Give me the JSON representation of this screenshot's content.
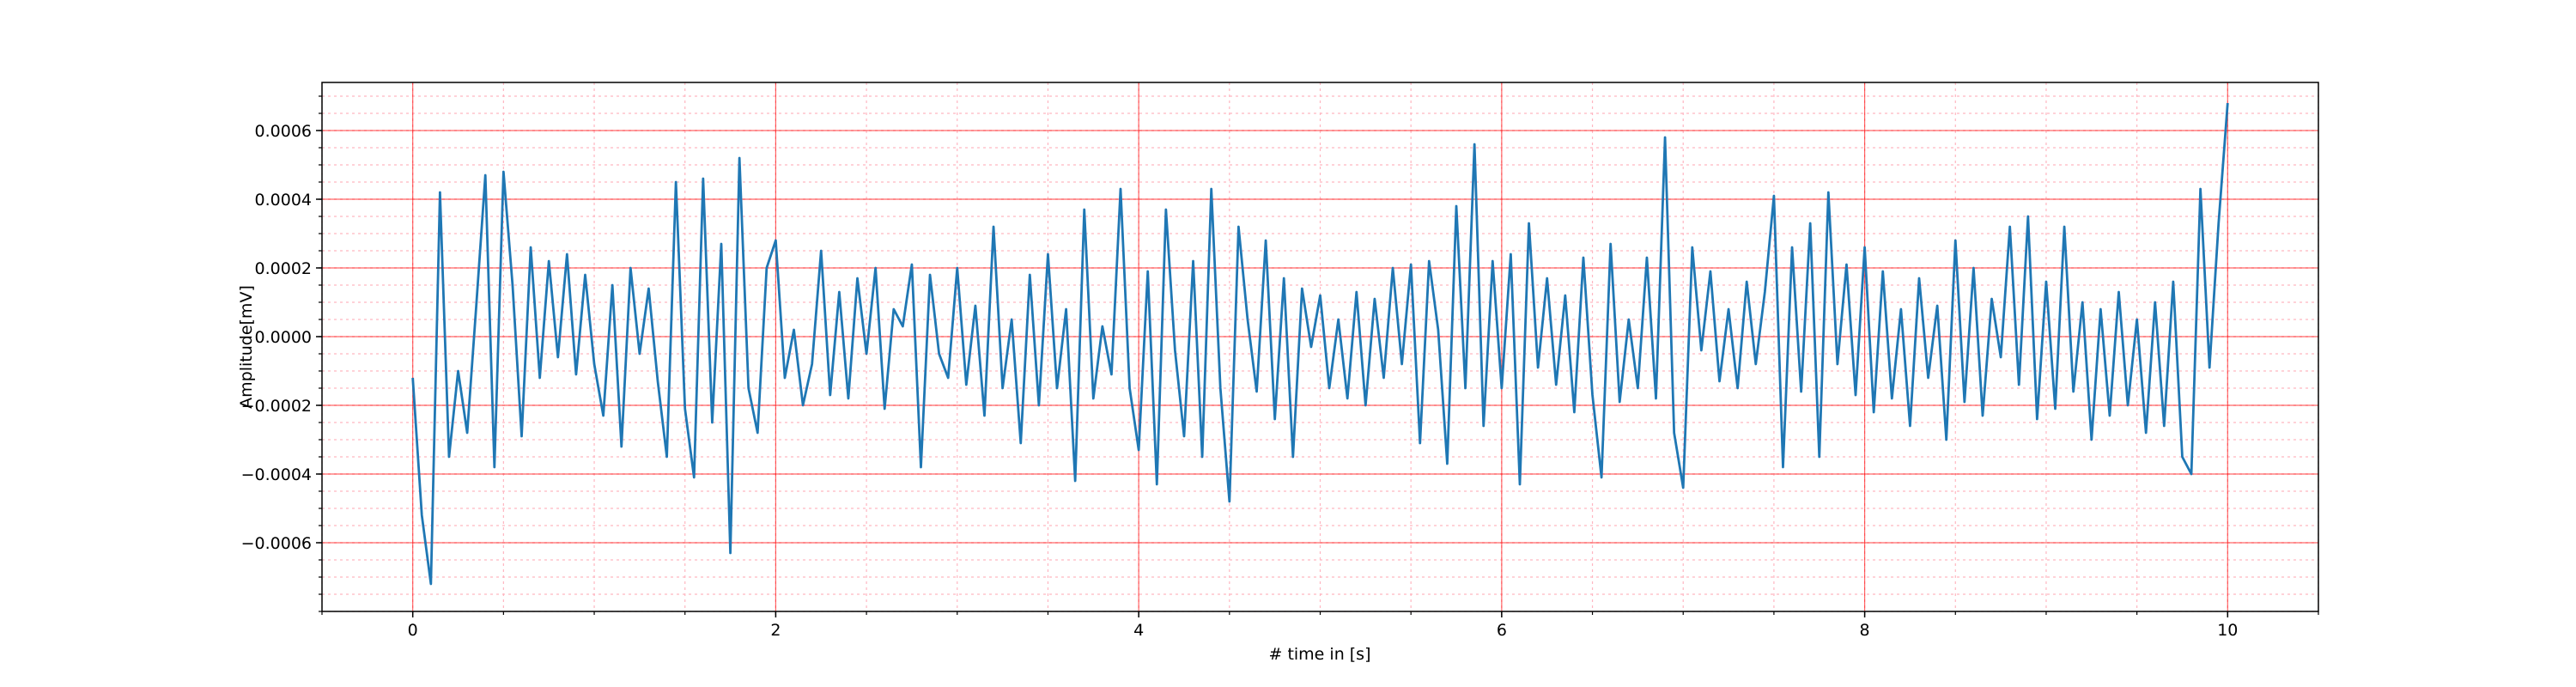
{
  "chart_data": {
    "type": "line",
    "x_label": "# time in [s]",
    "y_label": "Amplitude[mV]",
    "color": "#1f77b4",
    "grid": true,
    "grid_color": "#ff0000",
    "minor_grid": true,
    "minor_grid_color": "#ffb6c1",
    "xlim": [
      -0.5,
      10.5
    ],
    "ylim": [
      -0.0008,
      0.00074
    ],
    "xticks": [
      0,
      2,
      4,
      6,
      8,
      10
    ],
    "yticks": [
      {
        "value": -0.0006,
        "label": "−0.0006"
      },
      {
        "value": -0.0004,
        "label": "−0.0004"
      },
      {
        "value": -0.0002,
        "label": "−0.0002"
      },
      {
        "value": 0,
        "label": "0.0000"
      },
      0.0002,
      0.0004,
      0.0006
    ],
    "xminorticks": [
      -0.5,
      0,
      0.5,
      1,
      1.5,
      2,
      2.5,
      3,
      3.5,
      4,
      4.5,
      5,
      5.5,
      6,
      6.5,
      7,
      7.5,
      8,
      8.5,
      9,
      9.5,
      10,
      10.5
    ],
    "yminorticks": [
      -0.0008,
      -0.00075,
      -0.0007,
      -0.00065,
      -0.0006,
      -0.00055,
      -0.0005,
      -0.00045,
      -0.0004,
      -0.00035,
      -0.0003,
      -0.00025,
      -0.0002,
      -0.00015,
      -0.0001,
      -5e-05,
      0,
      5e-05,
      0.0001,
      0.00015,
      0.0002,
      0.00025,
      0.0003,
      0.00035,
      0.0004,
      0.00045,
      0.0005,
      0.00055,
      0.0006,
      0.00065,
      0.0007
    ],
    "x": [
      0,
      0.05,
      0.1,
      0.15,
      0.2,
      0.25,
      0.3,
      0.35,
      0.4,
      0.45,
      0.5,
      0.55,
      0.6,
      0.65,
      0.7,
      0.75,
      0.8,
      0.85,
      0.9,
      0.95,
      1,
      1.05,
      1.1,
      1.15,
      1.2,
      1.25,
      1.3,
      1.35,
      1.4,
      1.45,
      1.5,
      1.55,
      1.6,
      1.65,
      1.7,
      1.75,
      1.8,
      1.85,
      1.9,
      1.95,
      2,
      2.05,
      2.1,
      2.15,
      2.2,
      2.25,
      2.3,
      2.35,
      2.4,
      2.45,
      2.5,
      2.55,
      2.6,
      2.65,
      2.7,
      2.75,
      2.8,
      2.85,
      2.9,
      2.95,
      3,
      3.05,
      3.1,
      3.15,
      3.2,
      3.25,
      3.3,
      3.35,
      3.4,
      3.45,
      3.5,
      3.55,
      3.6,
      3.65,
      3.7,
      3.75,
      3.8,
      3.85,
      3.9,
      3.95,
      4,
      4.05,
      4.1,
      4.15,
      4.2,
      4.25,
      4.3,
      4.35,
      4.4,
      4.45,
      4.5,
      4.55,
      4.6,
      4.65,
      4.7,
      4.75,
      4.8,
      4.85,
      4.9,
      4.95,
      5,
      5.05,
      5.1,
      5.15,
      5.2,
      5.25,
      5.3,
      5.35,
      5.4,
      5.45,
      5.5,
      5.55,
      5.6,
      5.65,
      5.7,
      5.75,
      5.8,
      5.85,
      5.9,
      5.95,
      6,
      6.05,
      6.1,
      6.15,
      6.2,
      6.25,
      6.3,
      6.35,
      6.4,
      6.45,
      6.5,
      6.55,
      6.6,
      6.65,
      6.7,
      6.75,
      6.8,
      6.85,
      6.9,
      6.95,
      7,
      7.05,
      7.1,
      7.15,
      7.2,
      7.25,
      7.3,
      7.35,
      7.4,
      7.45,
      7.5,
      7.55,
      7.6,
      7.65,
      7.7,
      7.75,
      7.8,
      7.85,
      7.9,
      7.95,
      8,
      8.05,
      8.1,
      8.15,
      8.2,
      8.25,
      8.3,
      8.35,
      8.4,
      8.45,
      8.5,
      8.55,
      8.6,
      8.65,
      8.7,
      8.75,
      8.8,
      8.85,
      8.9,
      8.95,
      9,
      9.05,
      9.1,
      9.15,
      9.2,
      9.25,
      9.3,
      9.35,
      9.4,
      9.45,
      9.5,
      9.55,
      9.6,
      9.65,
      9.7,
      9.75,
      9.8,
      9.85,
      9.9,
      9.95,
      10
    ],
    "values": [
      -0.00012,
      -0.00052,
      -0.00072,
      0.00042,
      -0.00035,
      -0.0001,
      -0.00028,
      9e-05,
      0.00047,
      -0.00038,
      0.00048,
      0.00015,
      -0.00029,
      0.00026,
      -0.00012,
      0.00022,
      -6e-05,
      0.00024,
      -0.00011,
      0.00018,
      -8e-05,
      -0.00023,
      0.00015,
      -0.00032,
      0.0002,
      -5e-05,
      0.00014,
      -0.00013,
      -0.00035,
      0.00045,
      -0.00021,
      -0.00041,
      0.00046,
      -0.00025,
      0.00027,
      -0.00063,
      0.00052,
      -0.00015,
      -0.00028,
      0.0002,
      0.00028,
      -0.00012,
      2e-05,
      -0.0002,
      -8e-05,
      0.00025,
      -0.00017,
      0.00013,
      -0.00018,
      0.00017,
      -5e-05,
      0.0002,
      -0.00021,
      8e-05,
      3e-05,
      0.00021,
      -0.00038,
      0.00018,
      -5e-05,
      -0.00012,
      0.0002,
      -0.00014,
      9e-05,
      -0.00023,
      0.00032,
      -0.00015,
      5e-05,
      -0.00031,
      0.00018,
      -0.0002,
      0.00024,
      -0.00015,
      8e-05,
      -0.00042,
      0.00037,
      -0.00018,
      3e-05,
      -0.00011,
      0.00043,
      -0.00015,
      -0.00033,
      0.00019,
      -0.00043,
      0.00037,
      -4e-05,
      -0.00029,
      0.00022,
      -0.00035,
      0.00043,
      -0.00015,
      -0.00048,
      0.00032,
      5e-05,
      -0.00016,
      0.00028,
      -0.00024,
      0.00017,
      -0.00035,
      0.00014,
      -3e-05,
      0.00012,
      -0.00015,
      5e-05,
      -0.00018,
      0.00013,
      -0.0002,
      0.00011,
      -0.00012,
      0.0002,
      -8e-05,
      0.00021,
      -0.00031,
      0.00022,
      2e-05,
      -0.00037,
      0.00038,
      -0.00015,
      0.00056,
      -0.00026,
      0.00022,
      -0.00015,
      0.00024,
      -0.00043,
      0.00033,
      -9e-05,
      0.00017,
      -0.00014,
      0.00012,
      -0.00022,
      0.00023,
      -0.00017,
      -0.00041,
      0.00027,
      -0.00019,
      5e-05,
      -0.00015,
      0.00023,
      -0.00018,
      0.00058,
      -0.00028,
      -0.00044,
      0.00026,
      -4e-05,
      0.00019,
      -0.00013,
      8e-05,
      -0.00015,
      0.00016,
      -8e-05,
      0.00013,
      0.00041,
      -0.00038,
      0.00026,
      -0.00016,
      0.00033,
      -0.00035,
      0.00042,
      -8e-05,
      0.00021,
      -0.00017,
      0.00026,
      -0.00022,
      0.00019,
      -0.00018,
      8e-05,
      -0.00026,
      0.00017,
      -0.00012,
      9e-05,
      -0.0003,
      0.00028,
      -0.00019,
      0.0002,
      -0.00023,
      0.00011,
      -6e-05,
      0.00032,
      -0.00014,
      0.00035,
      -0.00024,
      0.00016,
      -0.00021,
      0.00032,
      -0.00016,
      0.0001,
      -0.0003,
      8e-05,
      -0.00023,
      0.00013,
      -0.0002,
      5e-05,
      -0.00028,
      0.0001,
      -0.00026,
      0.00016,
      -0.00035,
      -0.0004,
      0.00043,
      -9e-05,
      0.00033,
      0.00068
    ]
  }
}
